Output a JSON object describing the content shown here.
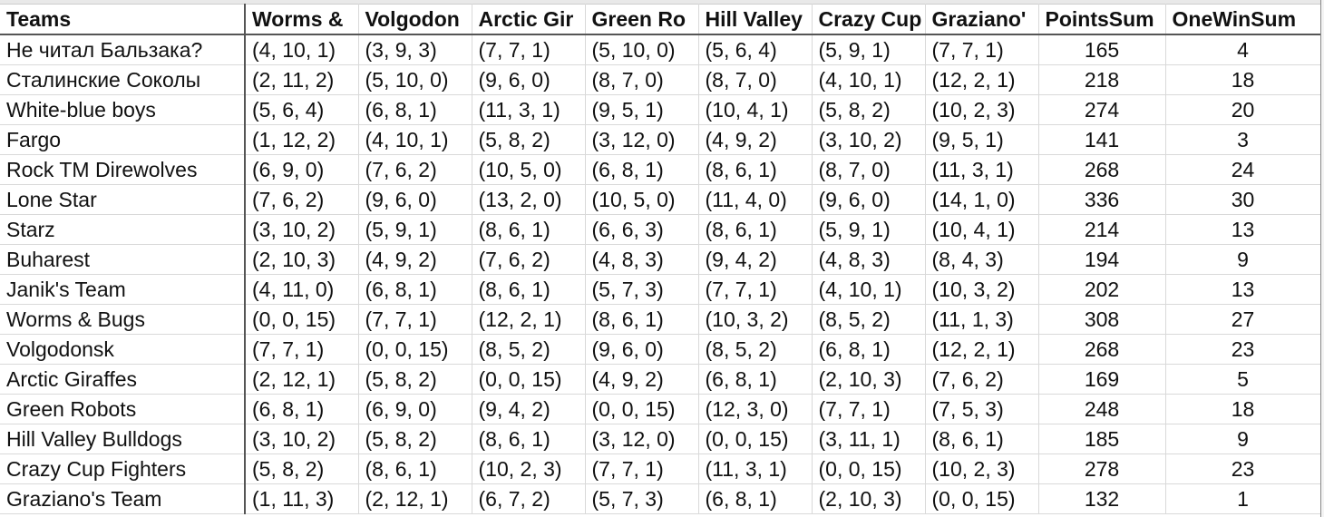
{
  "sheet": {
    "headers": [
      "Teams",
      "Worms &",
      "Volgodon",
      "Arctic Gir",
      "Green Ro",
      "Hill Valley",
      "Crazy Cup",
      "Graziano'",
      "PointsSum",
      "OneWinSum"
    ],
    "rows": [
      [
        "Не читал Бальзака?",
        "(4, 10, 1)",
        "(3, 9, 3)",
        "(7, 7, 1)",
        "(5, 10, 0)",
        "(5, 6, 4)",
        "(5, 9, 1)",
        "(7, 7, 1)",
        "165",
        "4"
      ],
      [
        "Сталинские Соколы",
        "(2, 11, 2)",
        "(5, 10, 0)",
        "(9, 6, 0)",
        "(8, 7, 0)",
        "(8, 7, 0)",
        "(4, 10, 1)",
        "(12, 2, 1)",
        "218",
        "18"
      ],
      [
        "White-blue boys",
        "(5, 6, 4)",
        "(6, 8, 1)",
        "(11, 3, 1)",
        "(9, 5, 1)",
        "(10, 4, 1)",
        "(5, 8, 2)",
        "(10, 2, 3)",
        "274",
        "20"
      ],
      [
        "Fargo",
        "(1, 12, 2)",
        "(4, 10, 1)",
        "(5, 8, 2)",
        "(3, 12, 0)",
        "(4, 9, 2)",
        "(3, 10, 2)",
        "(9, 5, 1)",
        "141",
        "3"
      ],
      [
        "Rock TM Direwolves",
        "(6, 9, 0)",
        "(7, 6, 2)",
        "(10, 5, 0)",
        "(6, 8, 1)",
        "(8, 6, 1)",
        "(8, 7, 0)",
        "(11, 3, 1)",
        "268",
        "24"
      ],
      [
        "Lone Star",
        "(7, 6, 2)",
        "(9, 6, 0)",
        "(13, 2, 0)",
        "(10, 5, 0)",
        "(11, 4, 0)",
        "(9, 6, 0)",
        "(14, 1, 0)",
        "336",
        "30"
      ],
      [
        "Starz",
        "(3, 10, 2)",
        "(5, 9, 1)",
        "(8, 6, 1)",
        "(6, 6, 3)",
        "(8, 6, 1)",
        "(5, 9, 1)",
        "(10, 4, 1)",
        "214",
        "13"
      ],
      [
        "Buharest",
        "(2, 10, 3)",
        "(4, 9, 2)",
        "(7, 6, 2)",
        "(4, 8, 3)",
        "(9, 4, 2)",
        "(4, 8, 3)",
        "(8, 4, 3)",
        "194",
        "9"
      ],
      [
        "Janik's Team",
        "(4, 11, 0)",
        "(6, 8, 1)",
        "(8, 6, 1)",
        "(5, 7, 3)",
        "(7, 7, 1)",
        "(4, 10, 1)",
        "(10, 3, 2)",
        "202",
        "13"
      ],
      [
        "Worms & Bugs",
        "(0, 0, 15)",
        "(7, 7, 1)",
        "(12, 2, 1)",
        "(8, 6, 1)",
        "(10, 3, 2)",
        "(8, 5, 2)",
        "(11, 1, 3)",
        "308",
        "27"
      ],
      [
        "Volgodonsk",
        "(7, 7, 1)",
        "(0, 0, 15)",
        "(8, 5, 2)",
        "(9, 6, 0)",
        "(8, 5, 2)",
        "(6, 8, 1)",
        "(12, 2, 1)",
        "268",
        "23"
      ],
      [
        "Arctic Giraffes",
        "(2, 12, 1)",
        "(5, 8, 2)",
        "(0, 0, 15)",
        "(4, 9, 2)",
        "(6, 8, 1)",
        "(2, 10, 3)",
        "(7, 6, 2)",
        "169",
        "5"
      ],
      [
        "Green Robots",
        "(6, 8, 1)",
        "(6, 9, 0)",
        "(9, 4, 2)",
        "(0, 0, 15)",
        "(12, 3, 0)",
        "(7, 7, 1)",
        "(7, 5, 3)",
        "248",
        "18"
      ],
      [
        "Hill Valley Bulldogs",
        "(3, 10, 2)",
        "(5, 8, 2)",
        "(8, 6, 1)",
        "(3, 12, 0)",
        "(0, 0, 15)",
        "(3, 11, 1)",
        "(8, 6, 1)",
        "185",
        "9"
      ],
      [
        "Crazy Cup Fighters",
        "(5, 8, 2)",
        "(8, 6, 1)",
        "(10, 2, 3)",
        "(7, 7, 1)",
        "(11, 3, 1)",
        "(0, 0, 15)",
        "(10, 2, 3)",
        "278",
        "23"
      ],
      [
        "Graziano's Team",
        "(1, 11, 3)",
        "(2, 12, 1)",
        "(6, 7, 2)",
        "(5, 7, 3)",
        "(6, 8, 1)",
        "(2, 10, 3)",
        "(0, 0, 15)",
        "132",
        "1"
      ]
    ]
  }
}
